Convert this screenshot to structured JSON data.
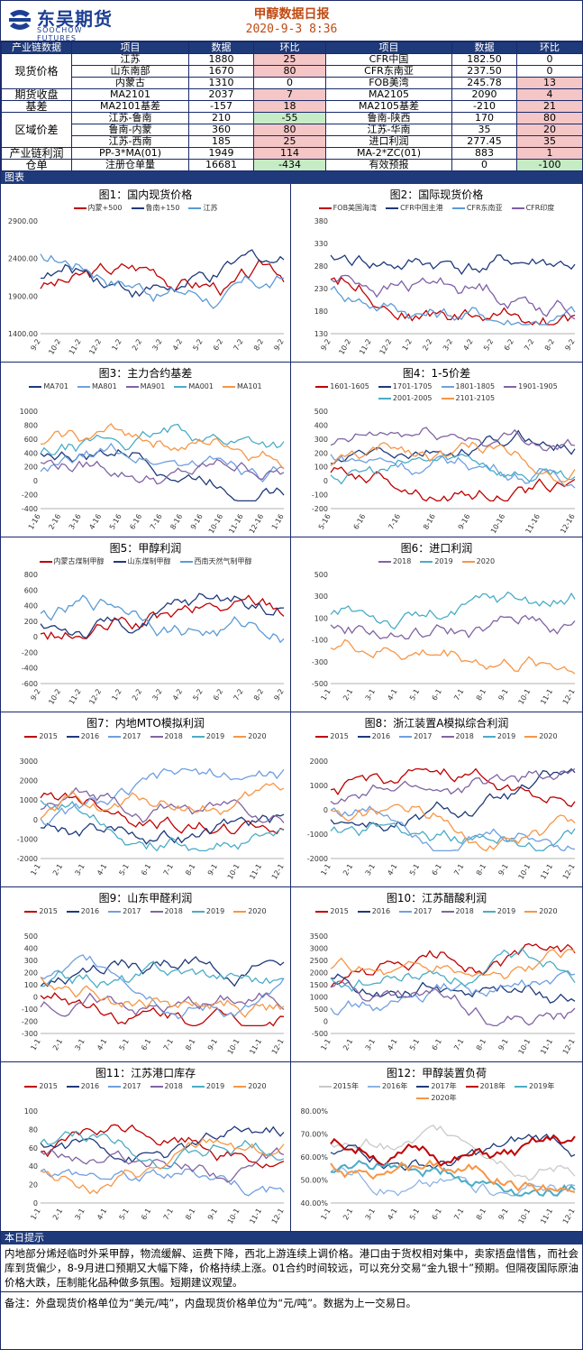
{
  "header": {
    "logo_cn": "东吴期货",
    "logo_en": "SOOCHOW FUTURES",
    "title": "甲醇数据日报",
    "date": "2020-9-3 8:36"
  },
  "table": {
    "headers": [
      "产业链数据",
      "项目",
      "数据",
      "环比",
      "项目",
      "数据",
      "环比"
    ],
    "rows": [
      {
        "cat": "现货价格",
        "span": 3,
        "l_item": "江苏",
        "l_val": "1880",
        "l_chg": "25",
        "l_col": "red",
        "r_item": "CFR中国",
        "r_val": "182.50",
        "r_chg": "0",
        "r_col": ""
      },
      {
        "l_item": "山东南部",
        "l_val": "1670",
        "l_chg": "80",
        "l_col": "red",
        "r_item": "CFR东南亚",
        "r_val": "237.50",
        "r_chg": "0",
        "r_col": ""
      },
      {
        "l_item": "内蒙古",
        "l_val": "1310",
        "l_chg": "0",
        "l_col": "",
        "r_item": "FOB美湾",
        "r_val": "245.78",
        "r_chg": "13",
        "r_col": "red"
      },
      {
        "cat": "期货收盘",
        "span": 1,
        "l_item": "MA2101",
        "l_val": "2037",
        "l_chg": "7",
        "l_col": "red",
        "r_item": "MA2105",
        "r_val": "2090",
        "r_chg": "4",
        "r_col": "red"
      },
      {
        "cat": "基差",
        "span": 1,
        "l_item": "MA2101基差",
        "l_val": "-157",
        "l_chg": "18",
        "l_col": "red",
        "r_item": "MA2105基差",
        "r_val": "-210",
        "r_chg": "21",
        "r_col": "red"
      },
      {
        "cat": "区域价差",
        "span": 3,
        "l_item": "江苏-鲁南",
        "l_val": "210",
        "l_chg": "-55",
        "l_col": "green",
        "r_item": "鲁南-陕西",
        "r_val": "170",
        "r_chg": "80",
        "r_col": "red"
      },
      {
        "l_item": "鲁南-内蒙",
        "l_val": "360",
        "l_chg": "80",
        "l_col": "red",
        "r_item": "江苏-华南",
        "r_val": "35",
        "r_chg": "20",
        "r_col": "red"
      },
      {
        "l_item": "江苏-西南",
        "l_val": "185",
        "l_chg": "25",
        "l_col": "red",
        "r_item": "进口利润",
        "r_val": "277.45",
        "r_chg": "35",
        "r_col": "red"
      },
      {
        "cat": "产业链利润",
        "span": 1,
        "l_item": "PP-3*MA(01)",
        "l_val": "1949",
        "l_chg": "114",
        "l_col": "red",
        "r_item": "MA-2*ZC(01)",
        "r_val": "883",
        "r_chg": "1",
        "r_col": "red"
      },
      {
        "cat": "仓单",
        "span": 1,
        "l_item": "注册仓单量",
        "l_val": "16681",
        "l_chg": "-434",
        "l_col": "green",
        "r_item": "有效预报",
        "r_val": "0",
        "r_chg": "-100",
        "r_col": "green"
      }
    ]
  },
  "section_charts": "图表",
  "section_tips": "本日提示",
  "tips_text": "内地部分烯烃临时外采甲醇，物流缓解、运费下降，西北上游连续上调价格。港口由于货权相对集中，卖家捂盘惜售，而社会库到货偏少，8-9月进口预期又大幅下降，价格持续上涨。01合约时间较远，可以充分交易“金九银十”预期。但隔夜国际原油价格大跌，压制能化品种做多氛围。短期建议观望。",
  "note_text": "备注：外盘现货价格单位为“美元/吨”，内盘现货价格单位为“元/吨”。数据为上一交易日。",
  "chart_data": [
    {
      "id": "c1",
      "type": "line",
      "title": "图1：国内现货价格",
      "series": [
        {
          "name": "内蒙+500",
          "color": "#c00000"
        },
        {
          "name": "鲁南+150",
          "color": "#1f3a7a"
        },
        {
          "name": "江苏",
          "color": "#5b9bd5"
        }
      ],
      "yticks": [
        "2900.00",
        "2400.00",
        "1900.00",
        "1400.00"
      ],
      "ylim": [
        1400,
        2900
      ],
      "xticks": [
        "9-2",
        "10-2",
        "11-2",
        "12-2",
        "1-2",
        "2-2",
        "3-2",
        "4-2",
        "5-2",
        "6-2",
        "7-2",
        "8-2",
        "9-2"
      ]
    },
    {
      "id": "c2",
      "type": "line",
      "title": "图2：国际现货价格",
      "series": [
        {
          "name": "FOB美国海湾",
          "color": "#c00000"
        },
        {
          "name": "CFR中国主港",
          "color": "#1f3a7a"
        },
        {
          "name": "CFR东南亚",
          "color": "#5b9bd5"
        },
        {
          "name": "CFR印度",
          "color": "#7f5fa8"
        }
      ],
      "yticks": [
        "380",
        "330",
        "280",
        "230",
        "180",
        "130"
      ],
      "ylim": [
        130,
        380
      ],
      "xticks": [
        "9-2",
        "10-2",
        "11-2",
        "12-2",
        "1-2",
        "2-2",
        "3-2",
        "4-2",
        "5-2",
        "6-2",
        "7-2",
        "8-2",
        "9-2"
      ]
    },
    {
      "id": "c3",
      "type": "line",
      "title": "图3：主力合约基差",
      "series": [
        {
          "name": "MA701",
          "color": "#1f3a7a"
        },
        {
          "name": "MA801",
          "color": "#6f9fe0"
        },
        {
          "name": "MA901",
          "color": "#8064a2"
        },
        {
          "name": "MA001",
          "color": "#4bacc6"
        },
        {
          "name": "MA101",
          "color": "#f79646"
        }
      ],
      "yticks": [
        "1000",
        "800",
        "600",
        "400",
        "200",
        "0",
        "-200",
        "-400"
      ],
      "ylim": [
        -400,
        1000
      ],
      "xticks": [
        "1-16",
        "2-16",
        "3-16",
        "4-16",
        "5-16",
        "6-16",
        "7-16",
        "8-16",
        "9-16",
        "10-16",
        "11-16",
        "12-16",
        "1-16"
      ]
    },
    {
      "id": "c4",
      "type": "line",
      "title": "图4：1-5价差",
      "series": [
        {
          "name": "1601-1605",
          "color": "#c00000"
        },
        {
          "name": "1701-1705",
          "color": "#1f3a7a"
        },
        {
          "name": "1801-1805",
          "color": "#6f9fe0"
        },
        {
          "name": "1901-1905",
          "color": "#8064a2"
        },
        {
          "name": "2001-2005",
          "color": "#4bacc6"
        },
        {
          "name": "2101-2105",
          "color": "#f79646"
        }
      ],
      "yticks": [
        "500",
        "400",
        "300",
        "200",
        "100",
        "0",
        "-100",
        "-200"
      ],
      "ylim": [
        -200,
        500
      ],
      "xticks": [
        "5-16",
        "6-16",
        "7-16",
        "8-16",
        "9-16",
        "10-16",
        "11-16",
        "12-16"
      ]
    },
    {
      "id": "c5",
      "type": "line",
      "title": "图5：甲醇利润",
      "series": [
        {
          "name": "内蒙古煤制甲醇",
          "color": "#c00000"
        },
        {
          "name": "山东煤制甲醇",
          "color": "#1f3a7a"
        },
        {
          "name": "西南天然气制甲醇",
          "color": "#5b9bd5"
        }
      ],
      "yticks": [
        "800",
        "600",
        "400",
        "200",
        "0",
        "-200",
        "-400",
        "-600"
      ],
      "ylim": [
        -600,
        800
      ],
      "xticks": [
        "9-2",
        "10-2",
        "11-2",
        "12-2",
        "1-2",
        "2-2",
        "3-2",
        "4-2",
        "5-2",
        "6-2",
        "7-2",
        "8-2",
        "9-2"
      ]
    },
    {
      "id": "c6",
      "type": "line",
      "title": "图6：进口利润",
      "series": [
        {
          "name": "2018",
          "color": "#8064a2"
        },
        {
          "name": "2019",
          "color": "#4bacc6"
        },
        {
          "name": "2020",
          "color": "#f79646"
        }
      ],
      "yticks": [
        "500",
        "300",
        "100",
        "-100",
        "-300",
        "-500"
      ],
      "ylim": [
        -500,
        500
      ],
      "xticks": [
        "1-1",
        "2-1",
        "3-1",
        "4-1",
        "5-1",
        "6-1",
        "7-1",
        "8-1",
        "9-1",
        "10-1",
        "11-1",
        "12-1"
      ]
    },
    {
      "id": "c7",
      "type": "line",
      "title": "图7：内地MTO模拟利润",
      "series": [
        {
          "name": "2015",
          "color": "#c00000"
        },
        {
          "name": "2016",
          "color": "#1f3a7a"
        },
        {
          "name": "2017",
          "color": "#6f9fe0"
        },
        {
          "name": "2018",
          "color": "#8064a2"
        },
        {
          "name": "2019",
          "color": "#4bacc6"
        },
        {
          "name": "2020",
          "color": "#f79646"
        }
      ],
      "yticks": [
        "3000",
        "2000",
        "1000",
        "0",
        "-1000",
        "-2000"
      ],
      "ylim": [
        -2000,
        3000
      ],
      "xticks": [
        "1-1",
        "2-1",
        "3-1",
        "4-1",
        "5-1",
        "6-1",
        "7-1",
        "8-1",
        "9-1",
        "10-1",
        "11-1",
        "12-1"
      ]
    },
    {
      "id": "c8",
      "type": "line",
      "title": "图8：浙江装置A模拟综合利润",
      "series": [
        {
          "name": "2015",
          "color": "#c00000"
        },
        {
          "name": "2016",
          "color": "#1f3a7a"
        },
        {
          "name": "2017",
          "color": "#6f9fe0"
        },
        {
          "name": "2018",
          "color": "#8064a2"
        },
        {
          "name": "2019",
          "color": "#4bacc6"
        },
        {
          "name": "2020",
          "color": "#f79646"
        }
      ],
      "yticks": [
        "2000",
        "1000",
        "0",
        "-1000",
        "-2000"
      ],
      "ylim": [
        -2000,
        2000
      ],
      "xticks": [
        "1-1",
        "2-1",
        "3-1",
        "4-1",
        "5-1",
        "6-1",
        "7-1",
        "8-1",
        "9-1",
        "10-1",
        "11-1",
        "12-1"
      ]
    },
    {
      "id": "c9",
      "type": "line",
      "title": "图9：山东甲醛利润",
      "series": [
        {
          "name": "2015",
          "color": "#c00000"
        },
        {
          "name": "2016",
          "color": "#1f3a7a"
        },
        {
          "name": "2017",
          "color": "#6f9fe0"
        },
        {
          "name": "2018",
          "color": "#8064a2"
        },
        {
          "name": "2019",
          "color": "#4bacc6"
        },
        {
          "name": "2020",
          "color": "#f79646"
        }
      ],
      "yticks": [
        "500",
        "400",
        "300",
        "200",
        "100",
        "0",
        "-100",
        "-200",
        "-300"
      ],
      "ylim": [
        -300,
        500
      ],
      "xticks": [
        "1-1",
        "2-1",
        "3-1",
        "4-1",
        "5-1",
        "6-1",
        "7-1",
        "8-1",
        "9-1",
        "10-1",
        "11-1",
        "12-1"
      ]
    },
    {
      "id": "c10",
      "type": "line",
      "title": "图10：江苏醋酸利润",
      "series": [
        {
          "name": "2015",
          "color": "#c00000"
        },
        {
          "name": "2016",
          "color": "#1f3a7a"
        },
        {
          "name": "2017",
          "color": "#6f9fe0"
        },
        {
          "name": "2018",
          "color": "#8064a2"
        },
        {
          "name": "2019",
          "color": "#4bacc6"
        },
        {
          "name": "2020",
          "color": "#f79646"
        }
      ],
      "yticks": [
        "3500",
        "3000",
        "2500",
        "2000",
        "1500",
        "1000",
        "500",
        "0",
        "-500"
      ],
      "ylim": [
        -500,
        3500
      ],
      "xticks": [
        "1-1",
        "2-1",
        "3-1",
        "4-1",
        "5-1",
        "6-1",
        "7-1",
        "8-1",
        "9-1",
        "10-1",
        "11-1",
        "12-1"
      ]
    },
    {
      "id": "c11",
      "type": "line",
      "title": "图11：江苏港口库存",
      "series": [
        {
          "name": "2015",
          "color": "#c00000"
        },
        {
          "name": "2016",
          "color": "#1f3a7a"
        },
        {
          "name": "2017",
          "color": "#6f9fe0"
        },
        {
          "name": "2018",
          "color": "#8064a2"
        },
        {
          "name": "2019",
          "color": "#4bacc6"
        },
        {
          "name": "2020",
          "color": "#f79646"
        }
      ],
      "yticks": [
        "100",
        "80",
        "60",
        "40",
        "20",
        "0"
      ],
      "ylim": [
        0,
        100
      ],
      "xticks": [
        "1-1",
        "2-1",
        "3-1",
        "4-1",
        "5-1",
        "6-1",
        "7-1",
        "8-1",
        "9-1",
        "10-1",
        "11-1",
        "12-1"
      ]
    },
    {
      "id": "c12",
      "type": "line",
      "title": "图12：甲醇装置负荷",
      "series": [
        {
          "name": "2015年",
          "color": "#c9c9c9"
        },
        {
          "name": "2016年",
          "color": "#8db4e2"
        },
        {
          "name": "2017年",
          "color": "#1f3a7a"
        },
        {
          "name": "2018年",
          "color": "#c00000"
        },
        {
          "name": "2019年",
          "color": "#4bacc6"
        },
        {
          "name": "2020年",
          "color": "#f79646"
        }
      ],
      "yticks": [
        "80.00%",
        "70.00%",
        "60.00%",
        "50.00%",
        "40.00%"
      ],
      "ylim": [
        40,
        80
      ],
      "xticks": [
        "1-1",
        "2-1",
        "3-1",
        "4-1",
        "5-1",
        "6-1",
        "7-1",
        "8-1",
        "9-1",
        "10-1",
        "11-1",
        "12-1"
      ]
    }
  ]
}
